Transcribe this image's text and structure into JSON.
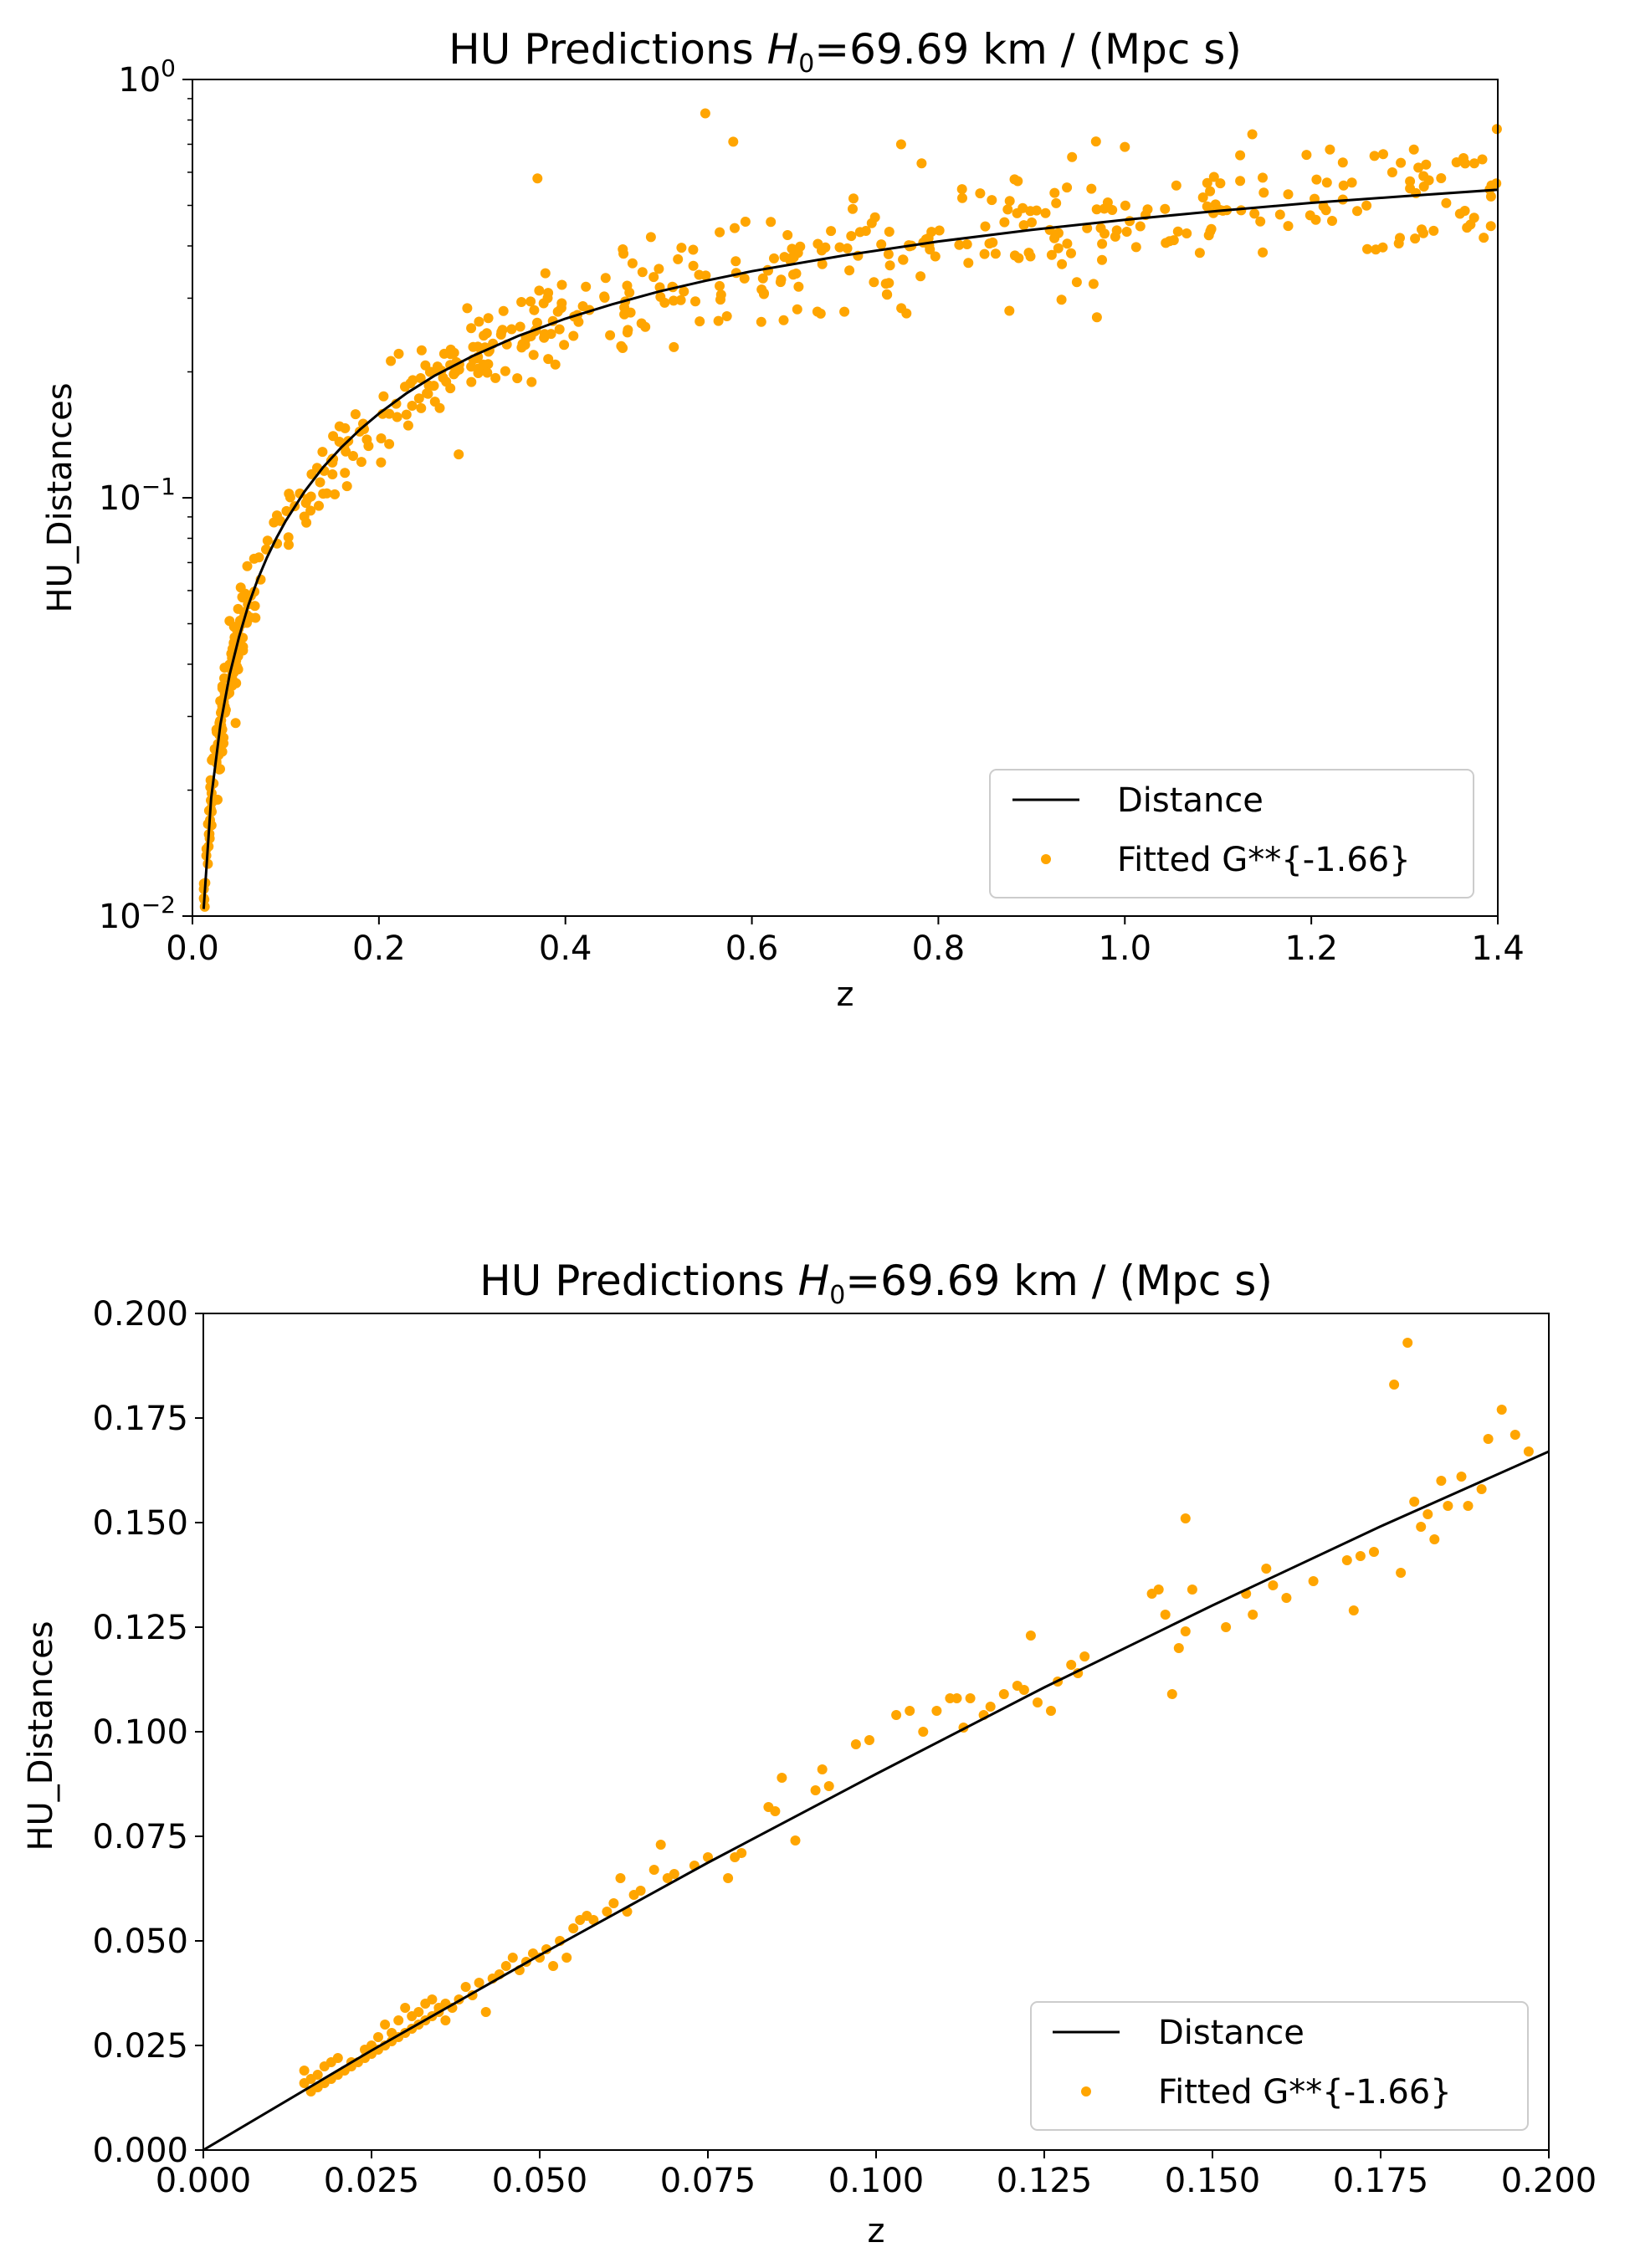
{
  "chart_data": [
    {
      "type": "scatter",
      "title": {
        "prefix": "HU Predictions ",
        "symbol": "H",
        "subscript": "0",
        "suffix": "=69.69 km / (Mpc s)"
      },
      "xlabel": "z",
      "ylabel": "HU_Distances",
      "xlim": [
        0,
        1.4
      ],
      "ylim": [
        0.01,
        1
      ],
      "yscale": "log",
      "grid": false,
      "legend_position": "lower-right",
      "x_ticks": [
        "0.0",
        "0.2",
        "0.4",
        "0.6",
        "0.8",
        "1.0",
        "1.2",
        "1.4"
      ],
      "y_ticks": [
        {
          "value": 0.01,
          "base": "10",
          "exponent": "−2"
        },
        {
          "value": 0.1,
          "base": "10",
          "exponent": "−1"
        },
        {
          "value": 1,
          "base": "10",
          "exponent": "0"
        }
      ],
      "series": [
        {
          "name": "Distance",
          "kind": "line",
          "color": "#000000",
          "x": [
            0.012,
            0.02,
            0.03,
            0.04,
            0.05,
            0.06,
            0.07,
            0.08,
            0.09,
            0.1,
            0.12,
            0.14,
            0.16,
            0.18,
            0.2,
            0.23,
            0.26,
            0.3,
            0.35,
            0.4,
            0.45,
            0.5,
            0.55,
            0.6,
            0.7,
            0.8,
            0.9,
            1.0,
            1.1,
            1.2,
            1.3,
            1.4
          ],
          "y": [
            0.0104,
            0.0191,
            0.0287,
            0.0379,
            0.0465,
            0.0554,
            0.0638,
            0.072,
            0.0801,
            0.088,
            0.1033,
            0.1182,
            0.1322,
            0.1458,
            0.159,
            0.178,
            0.196,
            0.218,
            0.244,
            0.268,
            0.29,
            0.311,
            0.33,
            0.348,
            0.38,
            0.41,
            0.437,
            0.462,
            0.485,
            0.507,
            0.526,
            0.545
          ]
        },
        {
          "name": "Fitted G**{-1.66}",
          "kind": "scatter",
          "color": "#FFA500",
          "generator": {
            "n_dense": 130,
            "dense_x": [
              0.012,
              0.06
            ],
            "n_mid": 170,
            "mid_x": [
              0.06,
              0.4
            ],
            "n_far": 280,
            "far_x": [
              0.4,
              1.4
            ],
            "scatter_dense": 0.1,
            "scatter_mid": 0.12,
            "scatter_far": 0.16
          },
          "outliers": [
            {
              "x": 0.55,
              "y": 0.83
            },
            {
              "x": 0.58,
              "y": 0.71
            },
            {
              "x": 0.76,
              "y": 0.7
            },
            {
              "x": 1.0,
              "y": 0.69
            },
            {
              "x": 1.22,
              "y": 0.68
            },
            {
              "x": 1.31,
              "y": 0.68
            },
            {
              "x": 0.37,
              "y": 0.58
            },
            {
              "x": 0.97,
              "y": 0.27
            }
          ]
        }
      ]
    },
    {
      "type": "scatter",
      "title": {
        "prefix": "HU Predictions ",
        "symbol": "H",
        "subscript": "0",
        "suffix": "=69.69 km / (Mpc s)"
      },
      "xlabel": "z",
      "ylabel": "HU_Distances",
      "xlim": [
        0,
        0.2
      ],
      "ylim": [
        0,
        0.2
      ],
      "yscale": "linear",
      "grid": false,
      "legend_position": "lower-right",
      "x_ticks": [
        "0.000",
        "0.025",
        "0.050",
        "0.075",
        "0.100",
        "0.125",
        "0.150",
        "0.175",
        "0.200"
      ],
      "y_ticks": [
        "0.000",
        "0.025",
        "0.050",
        "0.075",
        "0.100",
        "0.125",
        "0.150",
        "0.175",
        "0.200"
      ],
      "series": [
        {
          "name": "Distance",
          "kind": "line",
          "color": "#000000",
          "x": [
            0,
            0.025,
            0.05,
            0.075,
            0.1,
            0.125,
            0.15,
            0.175,
            0.2
          ],
          "y": [
            0,
            0.0238,
            0.0466,
            0.0687,
            0.0899,
            0.1106,
            0.1302,
            0.1491,
            0.167
          ]
        },
        {
          "name": "Fitted G**{-1.66}",
          "kind": "scatter",
          "color": "#FFA500",
          "points": [
            [
              0.015,
              0.016
            ],
            [
              0.015,
              0.019
            ],
            [
              0.016,
              0.014
            ],
            [
              0.016,
              0.017
            ],
            [
              0.017,
              0.015
            ],
            [
              0.017,
              0.018
            ],
            [
              0.018,
              0.016
            ],
            [
              0.018,
              0.02
            ],
            [
              0.019,
              0.017
            ],
            [
              0.019,
              0.021
            ],
            [
              0.02,
              0.018
            ],
            [
              0.02,
              0.022
            ],
            [
              0.021,
              0.019
            ],
            [
              0.022,
              0.02
            ],
            [
              0.022,
              0.021
            ],
            [
              0.023,
              0.021
            ],
            [
              0.024,
              0.022
            ],
            [
              0.024,
              0.024
            ],
            [
              0.025,
              0.023
            ],
            [
              0.025,
              0.025
            ],
            [
              0.026,
              0.024
            ],
            [
              0.026,
              0.027
            ],
            [
              0.027,
              0.025
            ],
            [
              0.027,
              0.03
            ],
            [
              0.028,
              0.026
            ],
            [
              0.028,
              0.028
            ],
            [
              0.029,
              0.027
            ],
            [
              0.029,
              0.031
            ],
            [
              0.03,
              0.028
            ],
            [
              0.03,
              0.034
            ],
            [
              0.031,
              0.029
            ],
            [
              0.031,
              0.032
            ],
            [
              0.032,
              0.03
            ],
            [
              0.032,
              0.033
            ],
            [
              0.033,
              0.031
            ],
            [
              0.033,
              0.035
            ],
            [
              0.034,
              0.032
            ],
            [
              0.034,
              0.036
            ],
            [
              0.035,
              0.033
            ],
            [
              0.035,
              0.034
            ],
            [
              0.036,
              0.031
            ],
            [
              0.036,
              0.035
            ],
            [
              0.037,
              0.034
            ],
            [
              0.038,
              0.036
            ],
            [
              0.039,
              0.039
            ],
            [
              0.04,
              0.037
            ],
            [
              0.041,
              0.04
            ],
            [
              0.042,
              0.033
            ],
            [
              0.043,
              0.041
            ],
            [
              0.044,
              0.042
            ],
            [
              0.045,
              0.044
            ],
            [
              0.046,
              0.046
            ],
            [
              0.047,
              0.043
            ],
            [
              0.048,
              0.045
            ],
            [
              0.049,
              0.047
            ],
            [
              0.05,
              0.046
            ],
            [
              0.051,
              0.048
            ],
            [
              0.052,
              0.044
            ],
            [
              0.053,
              0.05
            ],
            [
              0.054,
              0.046
            ],
            [
              0.055,
              0.053
            ],
            [
              0.056,
              0.055
            ],
            [
              0.057,
              0.056
            ],
            [
              0.058,
              0.055
            ],
            [
              0.06,
              0.057
            ],
            [
              0.061,
              0.059
            ],
            [
              0.062,
              0.065
            ],
            [
              0.063,
              0.057
            ],
            [
              0.064,
              0.061
            ],
            [
              0.065,
              0.062
            ],
            [
              0.067,
              0.067
            ],
            [
              0.068,
              0.073
            ],
            [
              0.069,
              0.065
            ],
            [
              0.07,
              0.066
            ],
            [
              0.073,
              0.068
            ],
            [
              0.075,
              0.07
            ],
            [
              0.078,
              0.065
            ],
            [
              0.079,
              0.07
            ],
            [
              0.08,
              0.071
            ],
            [
              0.084,
              0.082
            ],
            [
              0.085,
              0.081
            ],
            [
              0.086,
              0.089
            ],
            [
              0.088,
              0.074
            ],
            [
              0.091,
              0.086
            ],
            [
              0.092,
              0.091
            ],
            [
              0.093,
              0.087
            ],
            [
              0.097,
              0.097
            ],
            [
              0.099,
              0.098
            ],
            [
              0.103,
              0.104
            ],
            [
              0.105,
              0.105
            ],
            [
              0.107,
              0.1
            ],
            [
              0.109,
              0.105
            ],
            [
              0.111,
              0.108
            ],
            [
              0.112,
              0.108
            ],
            [
              0.113,
              0.101
            ],
            [
              0.114,
              0.108
            ],
            [
              0.116,
              0.104
            ],
            [
              0.117,
              0.106
            ],
            [
              0.119,
              0.109
            ],
            [
              0.121,
              0.111
            ],
            [
              0.122,
              0.11
            ],
            [
              0.123,
              0.123
            ],
            [
              0.124,
              0.107
            ],
            [
              0.126,
              0.105
            ],
            [
              0.127,
              0.112
            ],
            [
              0.129,
              0.116
            ],
            [
              0.13,
              0.114
            ],
            [
              0.131,
              0.118
            ],
            [
              0.141,
              0.133
            ],
            [
              0.142,
              0.134
            ],
            [
              0.143,
              0.128
            ],
            [
              0.144,
              0.109
            ],
            [
              0.145,
              0.12
            ],
            [
              0.146,
              0.151
            ],
            [
              0.146,
              0.124
            ],
            [
              0.147,
              0.134
            ],
            [
              0.152,
              0.125
            ],
            [
              0.155,
              0.133
            ],
            [
              0.156,
              0.128
            ],
            [
              0.158,
              0.139
            ],
            [
              0.159,
              0.135
            ],
            [
              0.161,
              0.132
            ],
            [
              0.165,
              0.136
            ],
            [
              0.17,
              0.141
            ],
            [
              0.171,
              0.129
            ],
            [
              0.172,
              0.142
            ],
            [
              0.174,
              0.143
            ],
            [
              0.177,
              0.183
            ],
            [
              0.178,
              0.138
            ],
            [
              0.179,
              0.193
            ],
            [
              0.18,
              0.155
            ],
            [
              0.181,
              0.149
            ],
            [
              0.182,
              0.152
            ],
            [
              0.183,
              0.146
            ],
            [
              0.184,
              0.16
            ],
            [
              0.185,
              0.154
            ],
            [
              0.187,
              0.161
            ],
            [
              0.188,
              0.154
            ],
            [
              0.19,
              0.158
            ],
            [
              0.191,
              0.17
            ],
            [
              0.193,
              0.177
            ],
            [
              0.195,
              0.171
            ],
            [
              0.197,
              0.167
            ]
          ]
        }
      ]
    }
  ]
}
